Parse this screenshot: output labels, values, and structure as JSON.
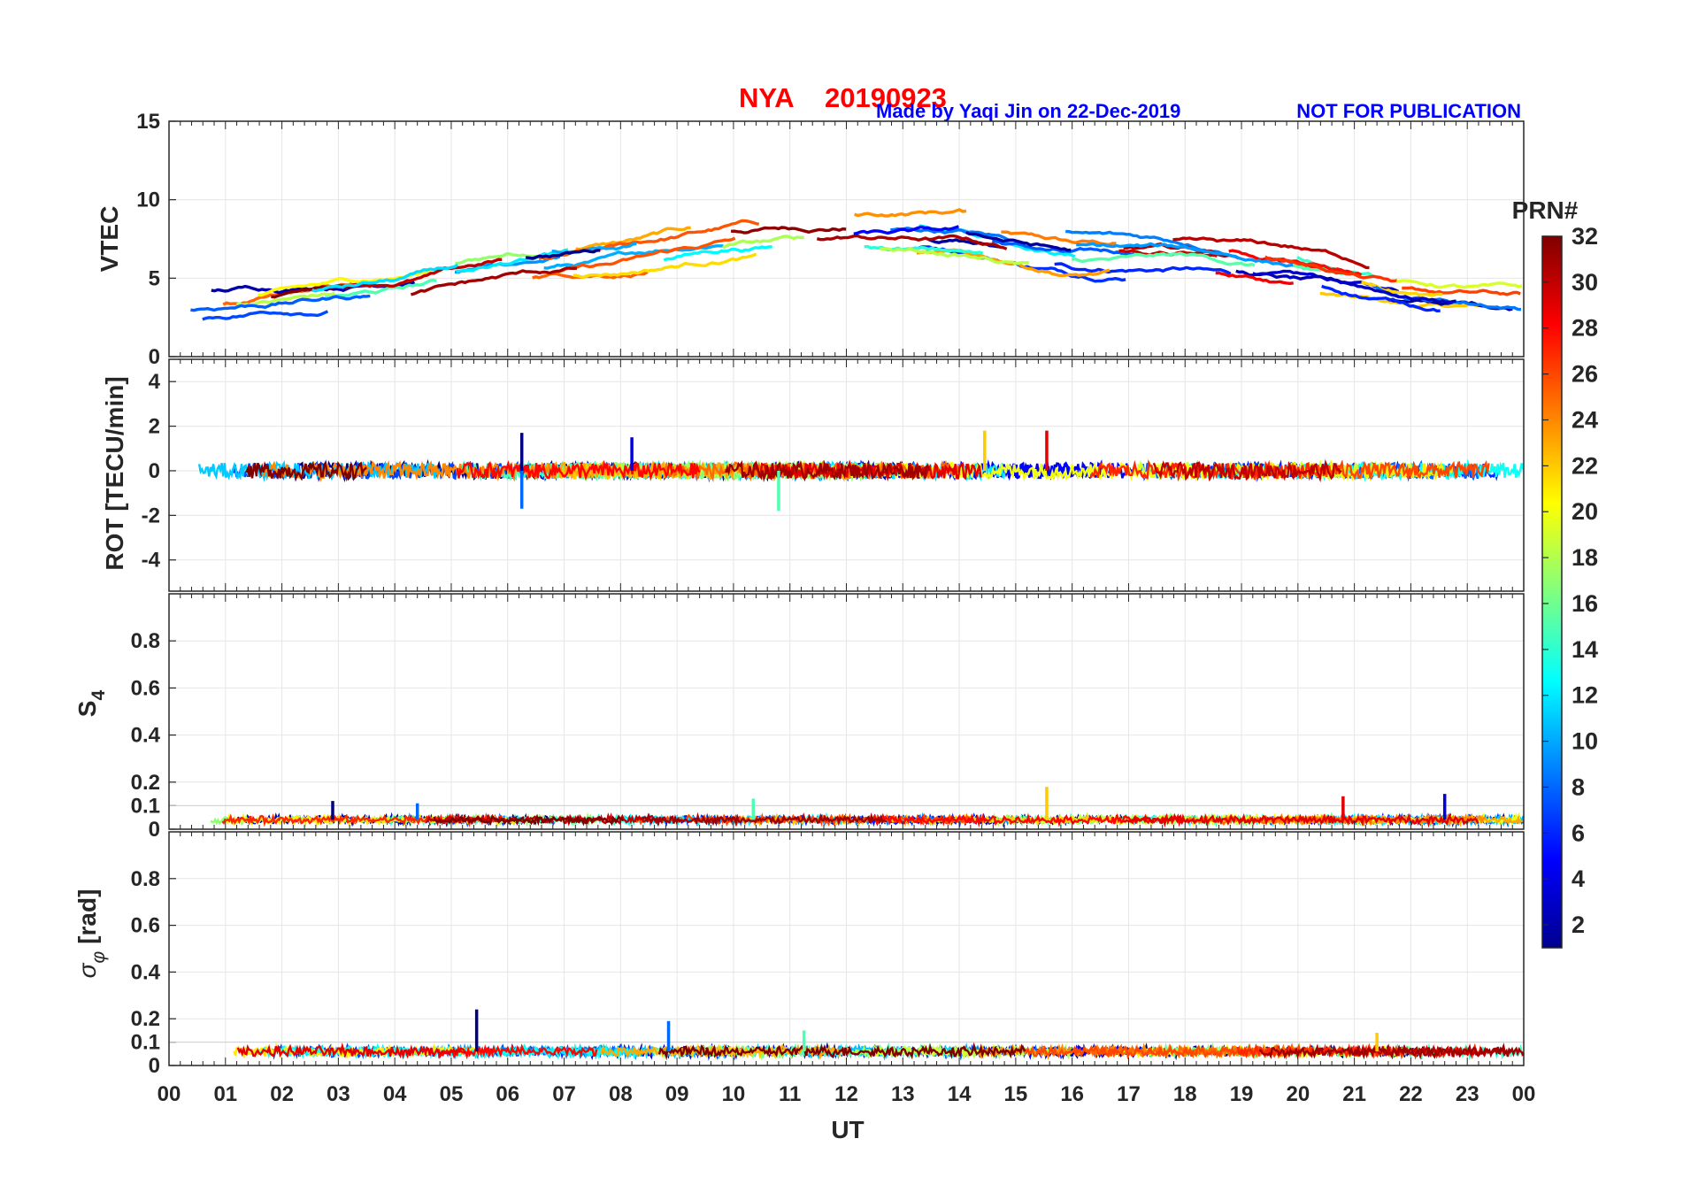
{
  "header": {
    "station": "NYA",
    "date": "20190923",
    "credit": "Made by Yaqi Jin on 22-Dec-2019",
    "notice": "NOT FOR PUBLICATION"
  },
  "colors": {
    "title": "#ff0000",
    "credit": "#0000ff",
    "grid": "#e6e6e6",
    "axis": "#262626"
  },
  "chart_data": [
    {
      "type": "line",
      "panel": "VTEC",
      "ylabel": "VTEC",
      "xlabel": "",
      "ylim": [
        0,
        15
      ],
      "yticks": [
        0,
        5,
        10,
        15
      ],
      "ytick_labels": [
        "0",
        "5",
        "10",
        "15"
      ],
      "x_hours": [
        0,
        2,
        4,
        6,
        8,
        10,
        12,
        14,
        16,
        18,
        20,
        22,
        24
      ],
      "series": [
        {
          "name": "envelope-upper",
          "values": [
            4.2,
            4.6,
            5.4,
            6.8,
            7.6,
            8.8,
            9.2,
            9.6,
            8.2,
            7.4,
            6.6,
            5.0,
            4.4
          ]
        },
        {
          "name": "envelope-lower",
          "values": [
            2.0,
            3.0,
            3.6,
            4.6,
            5.2,
            6.4,
            6.8,
            6.2,
            5.0,
            5.4,
            4.2,
            3.0,
            2.6
          ]
        }
      ]
    },
    {
      "type": "line",
      "panel": "ROT",
      "ylabel": "ROT [TECU/min]",
      "ylim": [
        -5.4,
        5
      ],
      "yticks": [
        -4,
        -2,
        0,
        2,
        4
      ],
      "ytick_labels": [
        "-4",
        "-2",
        "0",
        "2",
        "4"
      ],
      "baseline": 0,
      "peaks": [
        {
          "x": 6.25,
          "value": 1.7
        },
        {
          "x": 6.25,
          "value": -1.7
        },
        {
          "x": 10.8,
          "value": -1.8
        },
        {
          "x": 14.45,
          "value": 1.8
        },
        {
          "x": 15.55,
          "value": 1.8
        },
        {
          "x": 8.2,
          "value": 1.5
        }
      ]
    },
    {
      "type": "line",
      "panel": "S4",
      "ylabel": "S4",
      "ylabel_main": "S",
      "ylabel_sub": "4",
      "ylim": [
        0,
        1
      ],
      "yticks": [
        0,
        0.1,
        0.2,
        0.4,
        0.6,
        0.8
      ],
      "ytick_labels": [
        "0",
        "0.1",
        "0.2",
        "0.4",
        "0.6",
        "0.8"
      ],
      "reference_line": 0.1,
      "baseline": 0.04,
      "peaks": [
        {
          "x": 2.9,
          "value": 0.12
        },
        {
          "x": 4.4,
          "value": 0.11
        },
        {
          "x": 10.35,
          "value": 0.13
        },
        {
          "x": 15.55,
          "value": 0.18
        },
        {
          "x": 20.8,
          "value": 0.14
        },
        {
          "x": 22.6,
          "value": 0.15
        }
      ]
    },
    {
      "type": "line",
      "panel": "sigma_phi",
      "ylabel": "σφ [rad]",
      "ylabel_main": "σ",
      "ylabel_sub": "φ",
      "ylabel_unit": "[rad]",
      "ylim": [
        0,
        1
      ],
      "yticks": [
        0,
        0.1,
        0.2,
        0.4,
        0.6,
        0.8
      ],
      "ytick_labels": [
        "0",
        "0.1",
        "0.2",
        "0.4",
        "0.6",
        "0.8"
      ],
      "reference_line": 0.1,
      "baseline": 0.06,
      "peaks": [
        {
          "x": 5.45,
          "value": 0.24
        },
        {
          "x": 8.85,
          "value": 0.19
        },
        {
          "x": 11.25,
          "value": 0.15
        },
        {
          "x": 21.4,
          "value": 0.14
        }
      ]
    }
  ],
  "x_axis": {
    "label": "UT",
    "range": [
      0,
      24
    ],
    "tick_labels": [
      "00",
      "01",
      "02",
      "03",
      "04",
      "05",
      "06",
      "07",
      "08",
      "09",
      "10",
      "11",
      "12",
      "13",
      "14",
      "15",
      "16",
      "17",
      "18",
      "19",
      "20",
      "21",
      "22",
      "23",
      "00"
    ]
  },
  "colorbar": {
    "title": "PRN#",
    "range": [
      1,
      32
    ],
    "ticks": [
      2,
      4,
      6,
      8,
      10,
      12,
      14,
      16,
      18,
      20,
      22,
      24,
      26,
      28,
      30,
      32
    ],
    "colormap": "jet"
  }
}
